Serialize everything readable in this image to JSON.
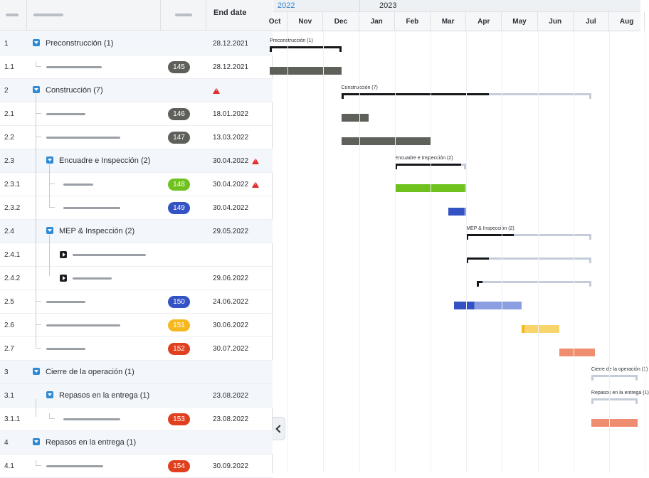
{
  "grid": {
    "end_date_header": "End date"
  },
  "rows": [
    {
      "wbs": "1",
      "name": "Preconstrucción (1)",
      "level": 0,
      "type": "parent",
      "badge": "",
      "badge_color": "",
      "date": "28.12.2021",
      "warn": false
    },
    {
      "wbs": "1.1",
      "name": "",
      "level": 1,
      "type": "task",
      "badge": "145",
      "badge_color": "#5e605a",
      "date": "28.12.2021",
      "warn": false,
      "ph": 78
    },
    {
      "wbs": "2",
      "name": "Construcción (7)",
      "level": 0,
      "type": "parent",
      "badge": "",
      "badge_color": "",
      "date": "",
      "warn": true
    },
    {
      "wbs": "2.1",
      "name": "",
      "level": 1,
      "type": "task",
      "badge": "146",
      "badge_color": "#5e605a",
      "date": "18.01.2022",
      "warn": false,
      "ph": 55
    },
    {
      "wbs": "2.2",
      "name": "",
      "level": 1,
      "type": "task",
      "badge": "147",
      "badge_color": "#5e605a",
      "date": "13.03.2022",
      "warn": false,
      "ph": 104
    },
    {
      "wbs": "2.3",
      "name": "Encuadre e Inspección (2)",
      "level": 1,
      "type": "parent",
      "badge": "",
      "badge_color": "",
      "date": "30.04.2022",
      "warn": true
    },
    {
      "wbs": "2.3.1",
      "name": "",
      "level": 2,
      "type": "task",
      "badge": "148",
      "badge_color": "#6fc21d",
      "date": "30.04.2022",
      "warn": true,
      "ph": 42
    },
    {
      "wbs": "2.3.2",
      "name": "",
      "level": 2,
      "type": "task",
      "badge": "149",
      "badge_color": "#3352c4",
      "date": "30.04.2022",
      "warn": false,
      "ph": 80
    },
    {
      "wbs": "2.4",
      "name": "MEP & Inspección (2)",
      "level": 1,
      "type": "parent",
      "badge": "",
      "badge_color": "",
      "date": "29.05.2022",
      "warn": false
    },
    {
      "wbs": "2.4.1",
      "name": "",
      "level": 2,
      "type": "expandable",
      "badge": "",
      "badge_color": "",
      "date": "",
      "warn": false,
      "ph": 103
    },
    {
      "wbs": "2.4.2",
      "name": "",
      "level": 2,
      "type": "expandable",
      "badge": "",
      "badge_color": "",
      "date": "29.06.2022",
      "warn": false,
      "ph": 55
    },
    {
      "wbs": "2.5",
      "name": "",
      "level": 1,
      "type": "task",
      "badge": "150",
      "badge_color": "#3352c4",
      "date": "24.06.2022",
      "warn": false,
      "ph": 55
    },
    {
      "wbs": "2.6",
      "name": "",
      "level": 1,
      "type": "task",
      "badge": "151",
      "badge_color": "#f5b81e",
      "date": "30.06.2022",
      "warn": false,
      "ph": 104
    },
    {
      "wbs": "2.7",
      "name": "",
      "level": 1,
      "type": "task",
      "badge": "152",
      "badge_color": "#e1401f",
      "date": "30.07.2022",
      "warn": false,
      "ph": 55
    },
    {
      "wbs": "3",
      "name": "Cierre de la operación (1)",
      "level": 0,
      "type": "parent",
      "badge": "",
      "badge_color": "",
      "date": "",
      "warn": false
    },
    {
      "wbs": "3.1",
      "name": "Repasos en la entrega (1)",
      "level": 1,
      "type": "parent",
      "badge": "",
      "badge_color": "",
      "date": "23.08.2022",
      "warn": false
    },
    {
      "wbs": "3.1.1",
      "name": "",
      "level": 2,
      "type": "task",
      "badge": "153",
      "badge_color": "#e1401f",
      "date": "23.08.2022",
      "warn": false,
      "ph": 80
    },
    {
      "wbs": "4",
      "name": "Repasos en la entrega (1)",
      "level": 0,
      "type": "parent",
      "badge": "",
      "badge_color": "",
      "date": "",
      "warn": false
    },
    {
      "wbs": "4.1",
      "name": "",
      "level": 1,
      "type": "task",
      "badge": "154",
      "badge_color": "#e1401f",
      "date": "30.09.2022",
      "warn": false,
      "ph": 80
    }
  ],
  "timeline": {
    "years": [
      {
        "label": "2022",
        "color": "#2f7fd6"
      },
      {
        "label": "2023",
        "color": "#2b2f36"
      }
    ],
    "months": [
      "Oct",
      "Nov",
      "Dec",
      "Jan",
      "Feb",
      "Mar",
      "Apr",
      "May",
      "Jun",
      "Jul",
      "Aug"
    ],
    "bars": [
      {
        "row": 0,
        "kind": "summary",
        "label": "Preconstrucción (1)",
        "start": 0.5,
        "end": 2.5,
        "progress": 1.0
      },
      {
        "row": 1,
        "kind": "task",
        "start": 0.5,
        "end": 2.5,
        "progress": 1.0,
        "color": "#5e605a",
        "light": "#5e605a"
      },
      {
        "row": 2,
        "kind": "summary",
        "label": "Construcción (7)",
        "start": 2.5,
        "end": 9.5,
        "progress": 0.59
      },
      {
        "row": 3,
        "kind": "task",
        "start": 2.5,
        "end": 3.27,
        "progress": 1.0,
        "color": "#5e605a",
        "light": "#5e605a"
      },
      {
        "row": 4,
        "kind": "task",
        "start": 2.5,
        "end": 5.0,
        "progress": 1.0,
        "color": "#5e605a",
        "light": "#5e605a"
      },
      {
        "row": 5,
        "kind": "summary",
        "label": "Encuadre e Inspección (2)",
        "start": 4.0,
        "end": 6.0,
        "progress": 0.93
      },
      {
        "row": 6,
        "kind": "task",
        "start": 4.0,
        "end": 6.0,
        "progress": 0.98,
        "color": "#6fc21d",
        "light": "#a7dc73"
      },
      {
        "row": 7,
        "kind": "task",
        "start": 5.5,
        "end": 6.0,
        "progress": 0.9,
        "color": "#3352c4",
        "light": "#8b9ee2"
      },
      {
        "row": 8,
        "kind": "summary",
        "label": "MEP & Inspección (2)",
        "start": 6.0,
        "end": 9.5,
        "progress": 0.38
      },
      {
        "row": 9,
        "kind": "summary",
        "label": "",
        "start": 6.0,
        "end": 9.5,
        "progress": 0.18
      },
      {
        "row": 10,
        "kind": "summary",
        "label": "",
        "start": 6.3,
        "end": 9.5,
        "progress": 0.05
      },
      {
        "row": 11,
        "kind": "task",
        "start": 5.65,
        "end": 7.55,
        "progress": 0.3,
        "color": "#3352c4",
        "light": "#8b9ee2"
      },
      {
        "row": 12,
        "kind": "task",
        "start": 7.55,
        "end": 8.6,
        "progress": 0.08,
        "color": "#f5b81e",
        "light": "#f8d46c"
      },
      {
        "row": 13,
        "kind": "task",
        "start": 8.6,
        "end": 9.6,
        "progress": 1.0,
        "color": "#ef8d70",
        "light": "#ef8d70"
      },
      {
        "row": 14,
        "kind": "summary",
        "label": "Cierre de la operación (1)",
        "start": 9.5,
        "end": 10.8,
        "progress": 0.0
      },
      {
        "row": 15,
        "kind": "summary",
        "label": "Repasos en la entrega (1)",
        "start": 9.5,
        "end": 10.8,
        "progress": 0.0
      },
      {
        "row": 16,
        "kind": "task",
        "start": 9.5,
        "end": 10.8,
        "progress": 1.0,
        "color": "#ef8d70",
        "light": "#ef8d70"
      }
    ]
  }
}
